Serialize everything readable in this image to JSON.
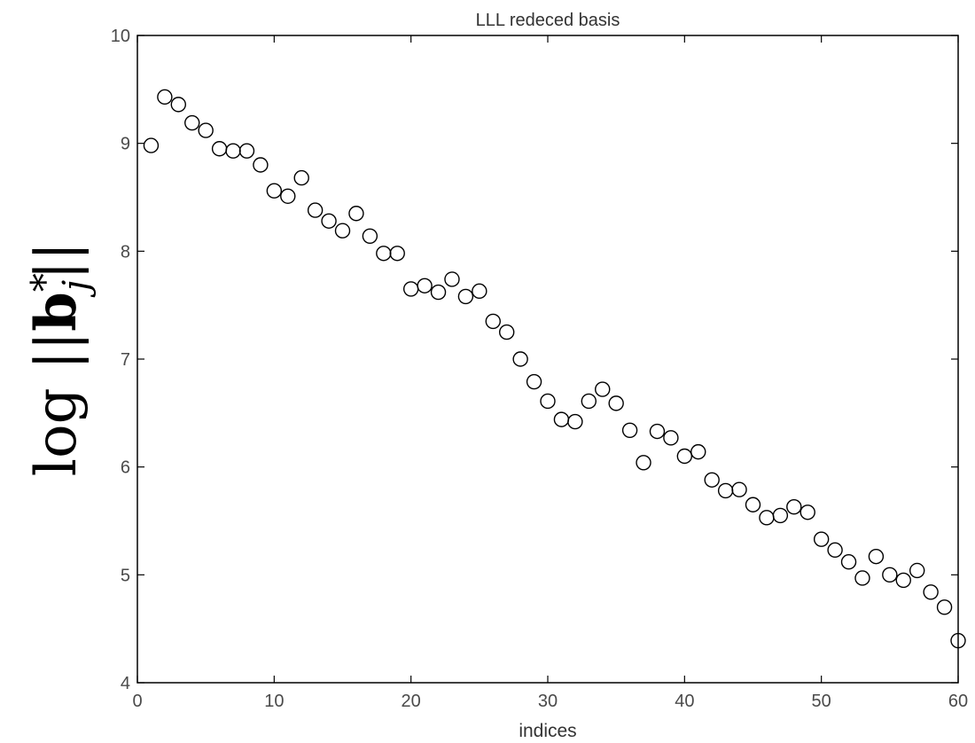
{
  "chart_data": {
    "type": "scatter",
    "title": "LLL redeced basis",
    "xlabel": "indices",
    "ylabel": {
      "prefix": "log ",
      "bars_open": "||",
      "vector": "b",
      "superscript": "*",
      "subscript": "j",
      "bars_close": "||"
    },
    "xlim": [
      0,
      60
    ],
    "ylim": [
      4,
      10
    ],
    "xticks": [
      0,
      10,
      20,
      30,
      40,
      50,
      60
    ],
    "yticks": [
      4,
      5,
      6,
      7,
      8,
      9,
      10
    ],
    "grid": false,
    "marker": "open-circle",
    "marker_color": "#000000",
    "x": [
      1,
      2,
      3,
      4,
      5,
      6,
      7,
      8,
      9,
      10,
      11,
      12,
      13,
      14,
      15,
      16,
      17,
      18,
      19,
      20,
      21,
      22,
      23,
      24,
      25,
      26,
      27,
      28,
      29,
      30,
      31,
      32,
      33,
      34,
      35,
      36,
      37,
      38,
      39,
      40,
      41,
      42,
      43,
      44,
      45,
      46,
      47,
      48,
      49,
      50,
      51,
      52,
      53,
      54,
      55,
      56,
      57,
      58,
      59,
      60
    ],
    "y": [
      8.98,
      9.43,
      9.36,
      9.19,
      9.12,
      8.95,
      8.93,
      8.93,
      8.8,
      8.56,
      8.51,
      8.68,
      8.38,
      8.28,
      8.19,
      8.35,
      8.14,
      7.98,
      7.98,
      7.65,
      7.68,
      7.62,
      7.74,
      7.58,
      7.63,
      7.35,
      7.25,
      7.0,
      6.79,
      6.61,
      6.44,
      6.42,
      6.61,
      6.72,
      6.59,
      6.34,
      6.04,
      6.33,
      6.27,
      6.1,
      6.14,
      5.88,
      5.78,
      5.79,
      5.65,
      5.53,
      5.55,
      5.63,
      5.58,
      5.33,
      5.23,
      5.12,
      4.97,
      5.17,
      5.0,
      4.95,
      5.04,
      4.84,
      4.7,
      4.39
    ]
  }
}
